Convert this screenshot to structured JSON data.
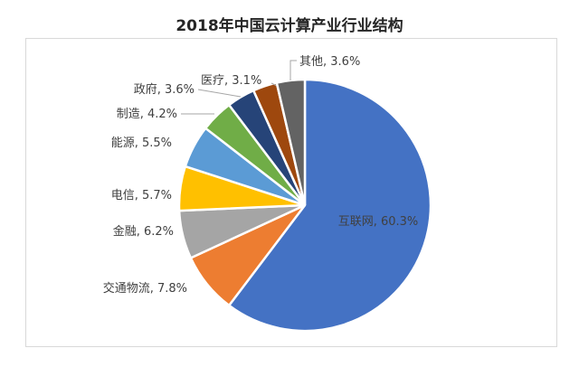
{
  "chart_data": {
    "type": "pie",
    "title": "2018年中国云计算产业行业结构",
    "start_angle": "12 o'clock",
    "direction": "clockwise",
    "legend": "none",
    "slices": [
      {
        "label": "互联网",
        "value": 60.3,
        "display": "互联网, 60.3%",
        "color": "#4472C4"
      },
      {
        "label": "交通物流",
        "value": 7.8,
        "display": "交通物流, 7.8%",
        "color": "#ED7D31"
      },
      {
        "label": "金融",
        "value": 6.2,
        "display": "金融, 6.2%",
        "color": "#A5A5A5"
      },
      {
        "label": "电信",
        "value": 5.7,
        "display": "电信, 5.7%",
        "color": "#FFC000"
      },
      {
        "label": "能源",
        "value": 5.5,
        "display": "能源, 5.5%",
        "color": "#5B9BD5"
      },
      {
        "label": "制造",
        "value": 4.2,
        "display": "制造, 4.2%",
        "color": "#70AD47"
      },
      {
        "label": "政府",
        "value": 3.6,
        "display": "政府, 3.6%",
        "color": "#264478"
      },
      {
        "label": "医疗",
        "value": 3.1,
        "display": "医疗, 3.1%",
        "color": "#9E480E"
      },
      {
        "label": "其他",
        "value": 3.6,
        "display": "其他, 3.6%",
        "color": "#636363"
      }
    ]
  }
}
